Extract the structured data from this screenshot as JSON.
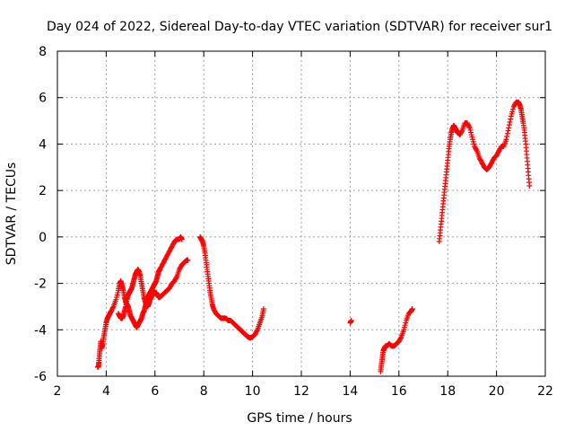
{
  "chart_data": {
    "type": "scatter",
    "title": "Day 024 of 2022, Sidereal Day-to-day VTEC variation (SDTVAR) for receiver sur1",
    "xlabel": "GPS time / hours",
    "ylabel": "SDTVAR / TECUs",
    "xlim": [
      2,
      22
    ],
    "ylim": [
      -6,
      8
    ],
    "xticks": [
      2,
      4,
      6,
      8,
      10,
      12,
      14,
      16,
      18,
      20,
      22
    ],
    "yticks": [
      -6,
      -4,
      -2,
      0,
      2,
      4,
      6,
      8
    ],
    "grid": true,
    "marker": "+",
    "series": [
      {
        "name": "SDTVAR",
        "color": "#ff0000",
        "segments": [
          {
            "x": [
              3.65,
              3.68,
              3.7,
              3.72,
              3.75,
              3.78,
              3.82,
              3.86,
              3.9,
              3.95,
              4.0,
              4.05,
              4.1,
              4.15,
              4.2,
              4.3,
              4.4,
              4.5,
              4.55,
              4.6,
              4.65,
              4.7,
              4.75,
              4.8,
              4.85,
              4.9,
              4.95,
              5.0,
              5.05,
              5.1,
              5.15,
              5.2,
              5.25,
              5.3,
              5.35,
              5.4,
              5.45,
              5.5,
              5.55,
              5.6,
              5.65,
              5.7,
              5.75,
              5.8,
              5.85,
              5.9,
              5.95,
              6.0,
              6.05,
              6.1,
              6.15,
              6.2,
              6.3,
              6.4,
              6.5,
              6.6,
              6.7,
              6.8,
              6.9,
              7.0,
              7.05,
              7.1
            ],
            "y": [
              -5.6,
              -5.6,
              -5.4,
              -5.1,
              -4.8,
              -4.5,
              -4.8,
              -4.6,
              -4.3,
              -4.0,
              -3.7,
              -3.5,
              -3.4,
              -3.3,
              -3.2,
              -3.0,
              -2.7,
              -2.3,
              -2.0,
              -1.9,
              -2.1,
              -2.3,
              -2.6,
              -2.8,
              -2.9,
              -3.0,
              -3.2,
              -3.4,
              -3.5,
              -3.6,
              -3.7,
              -3.8,
              -3.9,
              -3.8,
              -3.7,
              -3.6,
              -3.5,
              -3.3,
              -3.2,
              -3.0,
              -2.8,
              -2.6,
              -2.5,
              -2.4,
              -2.3,
              -2.2,
              -2.1,
              -2.0,
              -1.9,
              -1.7,
              -1.5,
              -1.4,
              -1.2,
              -1.0,
              -0.8,
              -0.6,
              -0.4,
              -0.2,
              -0.1,
              -0.1,
              0.0,
              -0.1
            ]
          },
          {
            "x": [
              4.5,
              4.55,
              4.6,
              4.65,
              4.7,
              4.75,
              4.8,
              4.85,
              4.9,
              4.95,
              5.0,
              5.05,
              5.1,
              5.15,
              5.2,
              5.25,
              5.3,
              5.35,
              5.4,
              5.45,
              5.5,
              5.55,
              5.6,
              5.65,
              5.7,
              5.75,
              5.8,
              5.85,
              5.9,
              5.95,
              6.0,
              6.05,
              6.1,
              6.15,
              6.2,
              6.3,
              6.4,
              6.5,
              6.6,
              6.7,
              6.8,
              6.9,
              7.0,
              7.1,
              7.2,
              7.3,
              7.35
            ],
            "y": [
              -3.3,
              -3.4,
              -3.5,
              -3.5,
              -3.4,
              -3.2,
              -3.0,
              -2.7,
              -2.5,
              -2.4,
              -2.3,
              -2.2,
              -2.0,
              -1.8,
              -1.6,
              -1.5,
              -1.4,
              -1.5,
              -1.7,
              -2.0,
              -2.3,
              -2.6,
              -2.8,
              -3.0,
              -3.0,
              -2.9,
              -2.7,
              -2.6,
              -2.5,
              -2.4,
              -2.4,
              -2.4,
              -2.5,
              -2.6,
              -2.6,
              -2.5,
              -2.4,
              -2.3,
              -2.2,
              -2.0,
              -1.9,
              -1.7,
              -1.4,
              -1.2,
              -1.1,
              -1.0,
              -1.0
            ]
          },
          {
            "x": [
              7.85,
              7.9,
              7.95,
              8.0,
              8.05,
              8.1,
              8.15,
              8.2,
              8.25,
              8.3,
              8.35,
              8.4,
              8.5,
              8.6,
              8.7,
              8.8,
              8.9,
              9.0,
              9.1,
              9.2,
              9.3,
              9.4,
              9.5,
              9.6,
              9.7,
              9.8,
              9.9,
              10.0,
              10.1,
              10.2,
              10.3,
              10.4,
              10.45
            ],
            "y": [
              0.0,
              -0.1,
              -0.2,
              -0.4,
              -0.7,
              -1.1,
              -1.5,
              -1.9,
              -2.3,
              -2.6,
              -2.9,
              -3.1,
              -3.3,
              -3.4,
              -3.5,
              -3.5,
              -3.5,
              -3.6,
              -3.6,
              -3.7,
              -3.8,
              -3.9,
              -4.0,
              -4.1,
              -4.2,
              -4.3,
              -4.35,
              -4.3,
              -4.2,
              -4.0,
              -3.7,
              -3.4,
              -3.1
            ]
          },
          {
            "x": [
              14.0,
              14.05
            ],
            "y": [
              -3.7,
              -3.6
            ]
          },
          {
            "x": [
              15.25,
              15.28,
              15.32,
              15.36,
              15.4,
              15.45,
              15.5,
              15.6,
              15.7,
              15.8,
              15.9,
              16.0,
              16.1,
              16.2,
              16.3,
              16.4,
              16.5,
              16.55
            ],
            "y": [
              -5.8,
              -5.5,
              -5.2,
              -4.9,
              -4.8,
              -4.7,
              -4.7,
              -4.6,
              -4.7,
              -4.7,
              -4.6,
              -4.5,
              -4.3,
              -4.0,
              -3.6,
              -3.3,
              -3.2,
              -3.1
            ]
          },
          {
            "x": [
              17.65,
              17.7,
              17.75,
              17.8,
              17.85,
              17.9,
              17.95,
              18.0,
              18.05,
              18.1,
              18.15,
              18.2,
              18.25,
              18.3,
              18.35,
              18.4,
              18.5,
              18.6,
              18.7,
              18.8,
              18.9,
              19.0,
              19.1,
              19.2,
              19.3,
              19.4,
              19.5,
              19.6,
              19.7,
              19.8,
              19.9,
              20.0,
              20.1,
              20.2,
              20.3,
              20.4,
              20.5,
              20.6,
              20.7,
              20.8,
              20.9,
              20.95,
              21.0,
              21.05,
              21.1,
              21.15,
              21.2,
              21.25,
              21.3,
              21.35
            ],
            "y": [
              -0.2,
              0.3,
              0.8,
              1.3,
              1.8,
              2.3,
              2.8,
              3.3,
              3.8,
              4.2,
              4.5,
              4.7,
              4.8,
              4.7,
              4.6,
              4.5,
              4.4,
              4.6,
              4.9,
              4.9,
              4.7,
              4.3,
              3.9,
              3.7,
              3.4,
              3.2,
              3.0,
              2.9,
              3.0,
              3.2,
              3.4,
              3.5,
              3.7,
              3.9,
              3.9,
              4.2,
              4.7,
              5.2,
              5.6,
              5.8,
              5.8,
              5.7,
              5.5,
              5.2,
              4.9,
              4.5,
              4.0,
              3.4,
              2.8,
              2.2
            ]
          }
        ]
      }
    ]
  }
}
